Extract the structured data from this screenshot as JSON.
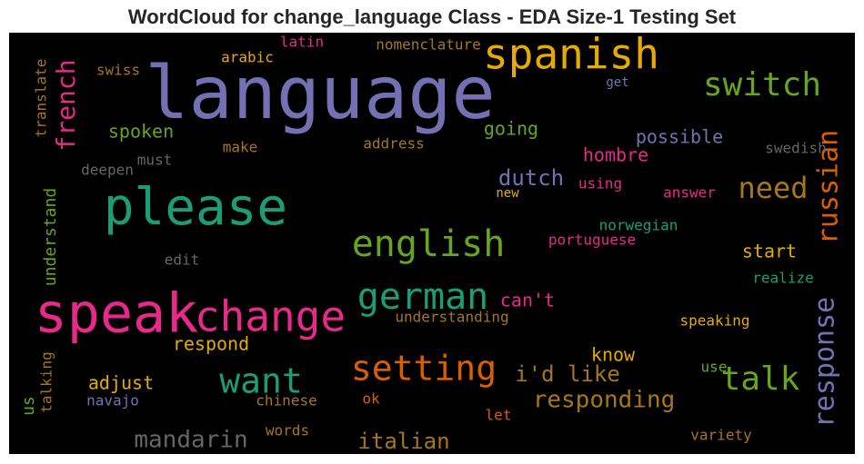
{
  "title": "WordCloud for change_language Class - EDA Size-1 Testing Set",
  "background": "#000000",
  "words": [
    {
      "text": "language",
      "color": "#7570b3"
    },
    {
      "text": "spanish",
      "color": "#e6ab02"
    },
    {
      "text": "switch",
      "color": "#66a61e"
    },
    {
      "text": "please",
      "color": "#1b9e77"
    },
    {
      "text": "speak",
      "color": "#e7298a"
    },
    {
      "text": "change",
      "color": "#e7298a"
    },
    {
      "text": "english",
      "color": "#66a61e"
    },
    {
      "text": "german",
      "color": "#1b9e77"
    },
    {
      "text": "setting",
      "color": "#d95f02"
    },
    {
      "text": "want",
      "color": "#1b9e77"
    },
    {
      "text": "talk",
      "color": "#66a61e"
    },
    {
      "text": "need",
      "color": "#a6761d"
    },
    {
      "text": "russian",
      "color": "#d95f02"
    },
    {
      "text": "response",
      "color": "#7570b3"
    },
    {
      "text": "french",
      "color": "#e7298a"
    },
    {
      "text": "responding",
      "color": "#a6761d"
    },
    {
      "text": "i'd like",
      "color": "#a6761d"
    },
    {
      "text": "mandarin",
      "color": "#666666"
    },
    {
      "text": "italian",
      "color": "#a6761d"
    },
    {
      "text": "dutch",
      "color": "#7570b3"
    },
    {
      "text": "spoken",
      "color": "#66a61e"
    },
    {
      "text": "going",
      "color": "#66a61e"
    },
    {
      "text": "possible",
      "color": "#7570b3"
    },
    {
      "text": "hombre",
      "color": "#e7298a"
    },
    {
      "text": "can't",
      "color": "#e7298a"
    },
    {
      "text": "respond",
      "color": "#e6ab02"
    },
    {
      "text": "adjust",
      "color": "#e6ab02"
    },
    {
      "text": "know",
      "color": "#e6ab02"
    },
    {
      "text": "start",
      "color": "#e6ab02"
    },
    {
      "text": "understanding",
      "color": "#a6761d"
    },
    {
      "text": "speaking",
      "color": "#e6ab02"
    },
    {
      "text": "understand",
      "color": "#66a61e"
    },
    {
      "text": "us",
      "color": "#66a61e"
    },
    {
      "text": "arabic",
      "color": "#e6ab02"
    },
    {
      "text": "latin",
      "color": "#e7298a"
    },
    {
      "text": "nomenclature",
      "color": "#a6761d"
    },
    {
      "text": "swiss",
      "color": "#a6761d"
    },
    {
      "text": "translate",
      "color": "#a6761d"
    },
    {
      "text": "get",
      "color": "#7570b3"
    },
    {
      "text": "make",
      "color": "#a6761d"
    },
    {
      "text": "address",
      "color": "#a6761d"
    },
    {
      "text": "must",
      "color": "#666666"
    },
    {
      "text": "deepen",
      "color": "#666666"
    },
    {
      "text": "swedish",
      "color": "#666666"
    },
    {
      "text": "new",
      "color": "#e6ab02"
    },
    {
      "text": "using",
      "color": "#e7298a"
    },
    {
      "text": "answer",
      "color": "#e7298a"
    },
    {
      "text": "norwegian",
      "color": "#1b9e77"
    },
    {
      "text": "portuguese",
      "color": "#e7298a"
    },
    {
      "text": "edit",
      "color": "#666666"
    },
    {
      "text": "realize",
      "color": "#1b9e77"
    },
    {
      "text": "use",
      "color": "#66a61e"
    },
    {
      "text": "talking",
      "color": "#a6761d"
    },
    {
      "text": "navajo",
      "color": "#7570b3"
    },
    {
      "text": "chinese",
      "color": "#a6761d"
    },
    {
      "text": "ok",
      "color": "#d95f02"
    },
    {
      "text": "let",
      "color": "#d95f02"
    },
    {
      "text": "words",
      "color": "#a6761d"
    },
    {
      "text": "variety",
      "color": "#a6761d"
    }
  ]
}
